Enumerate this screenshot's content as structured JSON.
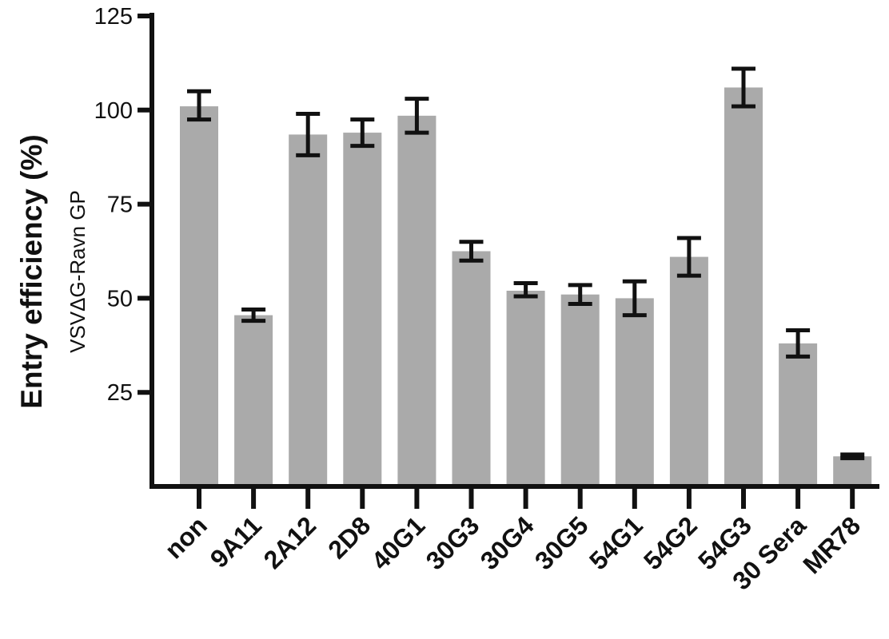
{
  "chart_data": {
    "type": "bar",
    "ylabel": "Entry efficiency (%)",
    "ylabel_sub": "VSVΔG-Ravn GP",
    "xlabel": "",
    "ylim": [
      0,
      125
    ],
    "yticks": [
      25,
      50,
      75,
      100,
      125
    ],
    "grid": false,
    "legend": "none",
    "bar_color": "#aaaaaa",
    "axis_color": "#111111",
    "categories": [
      "non",
      "9A11",
      "2A12",
      "2D8",
      "40G1",
      "30G3",
      "30G4",
      "30G5",
      "54G1",
      "54G2",
      "54G3",
      "30 Sera",
      "MR78"
    ],
    "values": [
      101,
      45.5,
      93.5,
      94,
      98.5,
      62.5,
      52,
      51,
      50,
      61,
      106,
      38,
      8
    ],
    "error_low": [
      97.5,
      44,
      88,
      90.5,
      94,
      60,
      50.5,
      48.5,
      45.5,
      56,
      101,
      34.5,
      7.5
    ],
    "error_high": [
      105,
      47,
      99,
      97.5,
      103,
      65,
      54,
      53.5,
      54.5,
      66,
      111,
      41.5,
      8.5
    ]
  }
}
